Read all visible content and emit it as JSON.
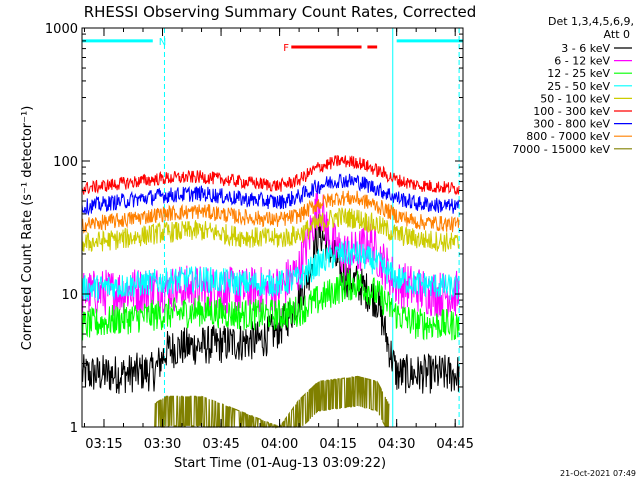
{
  "chart_data": {
    "type": "line",
    "title": "RHESSI Observing Summary Count Rates, Corrected",
    "xlabel": "Start Time (01-Aug-13 03:09:22)",
    "ylabel": "Corrected Count Rate (s⁻¹ detector⁻¹)",
    "x_scale": "time",
    "y_scale": "log",
    "xlim": [
      "03:09:22",
      "04:47:00"
    ],
    "ylim": [
      1,
      1000
    ],
    "x_ticks": [
      "03:15",
      "03:30",
      "03:45",
      "04:00",
      "04:15",
      "04:30",
      "04:45"
    ],
    "y_ticks": [
      "1",
      "10",
      "100",
      "1000"
    ],
    "legend": {
      "placement": "right",
      "header_line1": "Det 1,3,4,5,6,9,",
      "header_line2": "Att 0"
    },
    "footer_date": "21-Oct-2021 07:49",
    "annotations": [
      {
        "text": "N",
        "color": "#00ffff",
        "start": "03:09:22",
        "end": "03:27:30",
        "level": 800
      },
      {
        "text": "",
        "color": "#00ffff",
        "start": "04:30:00",
        "end": "04:47:00",
        "level": 800
      },
      {
        "text": "F",
        "color": "#ff0000",
        "start": "04:03:00",
        "end": "04:21:00",
        "level": 720
      },
      {
        "text": "",
        "color": "#ff0000",
        "start": "04:22:30",
        "end": "04:25:00",
        "level": 720
      }
    ],
    "vertical_markers": [
      {
        "time": "03:09:22",
        "color": "#00ffff",
        "style": "solid"
      },
      {
        "time": "03:30:30",
        "color": "#00ffff",
        "style": "dashed"
      },
      {
        "time": "04:29:00",
        "color": "#00ffff",
        "style": "solid"
      },
      {
        "time": "04:46:00",
        "color": "#00ffff",
        "style": "dashed"
      }
    ],
    "series": [
      {
        "name": "3 - 6 keV",
        "color": "#000000",
        "x": [
          "03:09:22",
          "03:20:00",
          "03:25:00",
          "03:28:00",
          "03:31:00",
          "03:35:00",
          "03:45:00",
          "03:55:00",
          "04:00:00",
          "04:04:00",
          "04:08:00",
          "04:10:00",
          "04:13:00",
          "04:16:00",
          "04:20:00",
          "04:25:00",
          "04:28:00",
          "04:30:00",
          "04:40:00",
          "04:46:00"
        ],
        "y": [
          2.5,
          2.5,
          2.6,
          2.6,
          3.8,
          4.0,
          4.2,
          4.5,
          5.5,
          8,
          16,
          30,
          22,
          14,
          12,
          9,
          4,
          2.5,
          2.5,
          2.5
        ]
      },
      {
        "name": "6 - 12 keV",
        "color": "#ff00ff",
        "x": [
          "03:09:22",
          "03:20:00",
          "03:30:00",
          "03:40:00",
          "03:50:00",
          "04:00:00",
          "04:05:00",
          "04:08:00",
          "04:10:00",
          "04:13:00",
          "04:16:00",
          "04:20:00",
          "04:23:00",
          "04:26:00",
          "04:30:00",
          "04:40:00",
          "04:46:00"
        ],
        "y": [
          10,
          10.5,
          11,
          11,
          10.5,
          11,
          15,
          30,
          50,
          25,
          20,
          20,
          25,
          18,
          12,
          10,
          10
        ]
      },
      {
        "name": "12 - 25 keV",
        "color": "#00ff00",
        "x": [
          "03:09:22",
          "03:20:00",
          "03:30:00",
          "03:40:00",
          "03:50:00",
          "04:00:00",
          "04:05:00",
          "04:10:00",
          "04:15:00",
          "04:20:00",
          "04:25:00",
          "04:30:00",
          "04:35:00",
          "04:46:00"
        ],
        "y": [
          5.8,
          6.5,
          7.0,
          7.5,
          7.0,
          7.0,
          7.5,
          9,
          11,
          12,
          10,
          7,
          6,
          5.8
        ]
      },
      {
        "name": "25 - 50 keV",
        "color": "#00ffff",
        "x": [
          "03:09:22",
          "03:20:00",
          "03:30:00",
          "03:40:00",
          "03:50:00",
          "04:00:00",
          "04:05:00",
          "04:10:00",
          "04:15:00",
          "04:20:00",
          "04:25:00",
          "04:30:00",
          "04:35:00",
          "04:46:00"
        ],
        "y": [
          11,
          11.5,
          12.5,
          13,
          12,
          12,
          13,
          17,
          20,
          20,
          17,
          13,
          12,
          11
        ]
      },
      {
        "name": "50 - 100 keV",
        "color": "#cccc00",
        "x": [
          "03:09:22",
          "03:20:00",
          "03:30:00",
          "03:40:00",
          "03:50:00",
          "04:00:00",
          "04:05:00",
          "04:10:00",
          "04:15:00",
          "04:20:00",
          "04:25:00",
          "04:30:00",
          "04:35:00",
          "04:46:00"
        ],
        "y": [
          24,
          26,
          29,
          30,
          27,
          26,
          28,
          34,
          38,
          37,
          33,
          28,
          26,
          24
        ]
      },
      {
        "name": "100 - 300 keV",
        "color": "#ff0000",
        "x": [
          "03:09:22",
          "03:20:00",
          "03:30:00",
          "03:40:00",
          "03:50:00",
          "04:00:00",
          "04:05:00",
          "04:10:00",
          "04:15:00",
          "04:20:00",
          "04:25:00",
          "04:30:00",
          "04:35:00",
          "04:46:00"
        ],
        "y": [
          62,
          68,
          74,
          76,
          70,
          65,
          72,
          90,
          100,
          98,
          85,
          72,
          66,
          62
        ]
      },
      {
        "name": "300 - 800 keV",
        "color": "#0000ff",
        "x": [
          "03:09:22",
          "03:20:00",
          "03:30:00",
          "03:40:00",
          "03:50:00",
          "04:00:00",
          "04:05:00",
          "04:10:00",
          "04:15:00",
          "04:20:00",
          "04:25:00",
          "04:30:00",
          "04:35:00",
          "04:46:00"
        ],
        "y": [
          45,
          50,
          55,
          57,
          52,
          49,
          54,
          65,
          72,
          70,
          62,
          53,
          48,
          45
        ]
      },
      {
        "name": "800 - 7000 keV",
        "color": "#ff8000",
        "x": [
          "03:09:22",
          "03:20:00",
          "03:30:00",
          "03:40:00",
          "03:50:00",
          "04:00:00",
          "04:05:00",
          "04:10:00",
          "04:15:00",
          "04:20:00",
          "04:25:00",
          "04:30:00",
          "04:35:00",
          "04:46:00"
        ],
        "y": [
          33,
          36,
          40,
          42,
          38,
          36,
          39,
          48,
          53,
          52,
          46,
          39,
          35,
          33
        ]
      },
      {
        "name": "7000 - 15000 keV",
        "color": "#808000",
        "x": [
          "03:28:00",
          "03:31:00",
          "03:35:00",
          "03:40:00",
          "03:45:00",
          "04:00:00",
          "04:05:00",
          "04:10:00",
          "04:15:00",
          "04:20:00",
          "04:25:00",
          "04:28:00"
        ],
        "y": [
          1.5,
          1.7,
          1.7,
          1.7,
          1.5,
          1.0,
          1.6,
          2.2,
          2.3,
          2.4,
          2.2,
          1.5
        ]
      }
    ]
  }
}
